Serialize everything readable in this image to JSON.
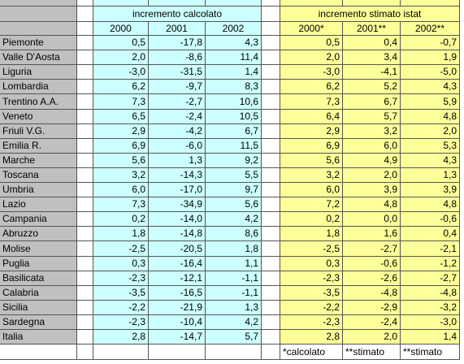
{
  "header": {
    "group1": "incremento calcolato",
    "group2": "incremento stimato istat",
    "years1": [
      "2000",
      "2001",
      "2002"
    ],
    "years2": [
      "2000*",
      "2001**",
      "2002**"
    ]
  },
  "table": {
    "rows": [
      [
        "Piemonte",
        "0,5",
        "-17,8",
        "4,3",
        "0,5",
        "0,4",
        "-0,7"
      ],
      [
        "Valle D'Aosta",
        "2,0",
        "-8,6",
        "11,4",
        "2,0",
        "3,4",
        "1,9"
      ],
      [
        "Liguria",
        "-3,0",
        "-31,5",
        "1,4",
        "-3,0",
        "-4,1",
        "-5,0"
      ],
      [
        "Lombardia",
        "6,2",
        "-9,7",
        "8,3",
        "6,2",
        "5,2",
        "4,3"
      ],
      [
        "Trentino A.A.",
        "7,3",
        "-2,7",
        "10,6",
        "7,3",
        "6,7",
        "5,9"
      ],
      [
        "Veneto",
        "6,5",
        "-2,4",
        "10,5",
        "6,4",
        "5,7",
        "4,8"
      ],
      [
        "Friuli V.G.",
        "2,9",
        "-4,2",
        "6,7",
        "2,9",
        "3,2",
        "2,0"
      ],
      [
        "Emilia R.",
        "6,9",
        "-6,0",
        "11,5",
        "6,9",
        "6,0",
        "5,3"
      ],
      [
        "Marche",
        "5,6",
        "1,3",
        "9,2",
        "5,6",
        "4,9",
        "4,3"
      ],
      [
        "Toscana",
        "3,2",
        "-14,3",
        "5,5",
        "3,2",
        "2,0",
        "1,3"
      ],
      [
        "Umbria",
        "6,0",
        "-17,0",
        "9,7",
        "6,0",
        "3,9",
        "3,9"
      ],
      [
        "Lazio",
        "7,3",
        "-34,9",
        "5,6",
        "7,2",
        "4,8",
        "4,8"
      ],
      [
        "Campania",
        "0,2",
        "-14,0",
        "4,2",
        "0,2",
        "0,0",
        "-0,6"
      ],
      [
        "Abruzzo",
        "1,8",
        "-14,8",
        "8,6",
        "1,8",
        "1,6",
        "0,4"
      ],
      [
        "Molise",
        "-2,5",
        "-20,5",
        "1,8",
        "-2,5",
        "-2,7",
        "-2,1"
      ],
      [
        "Puglia",
        "0,3",
        "-16,4",
        "1,1",
        "0,3",
        "-0,6",
        "-1,2"
      ],
      [
        "Basilicata",
        "-2,3",
        "-12,1",
        "-1,1",
        "-2,3",
        "-2,6",
        "-2,7"
      ],
      [
        "Calabria",
        "-3,5",
        "-16,5",
        "-1,1",
        "-3,5",
        "-4,8",
        "-4,8"
      ],
      [
        "Sicilia",
        "-2,2",
        "-21,9",
        "1,3",
        "-2,2",
        "-2,9",
        "-3,2"
      ],
      [
        "Sardegna",
        "-2,3",
        "-10,4",
        "4,2",
        "-2,3",
        "-2,4",
        "-3,0"
      ],
      [
        "Italia",
        "2,8",
        "-14,7",
        "5,7",
        "2,8",
        "2,0",
        "1,4"
      ]
    ]
  },
  "footnotes": [
    "*calcolato",
    "**stimato",
    "**stimato"
  ]
}
